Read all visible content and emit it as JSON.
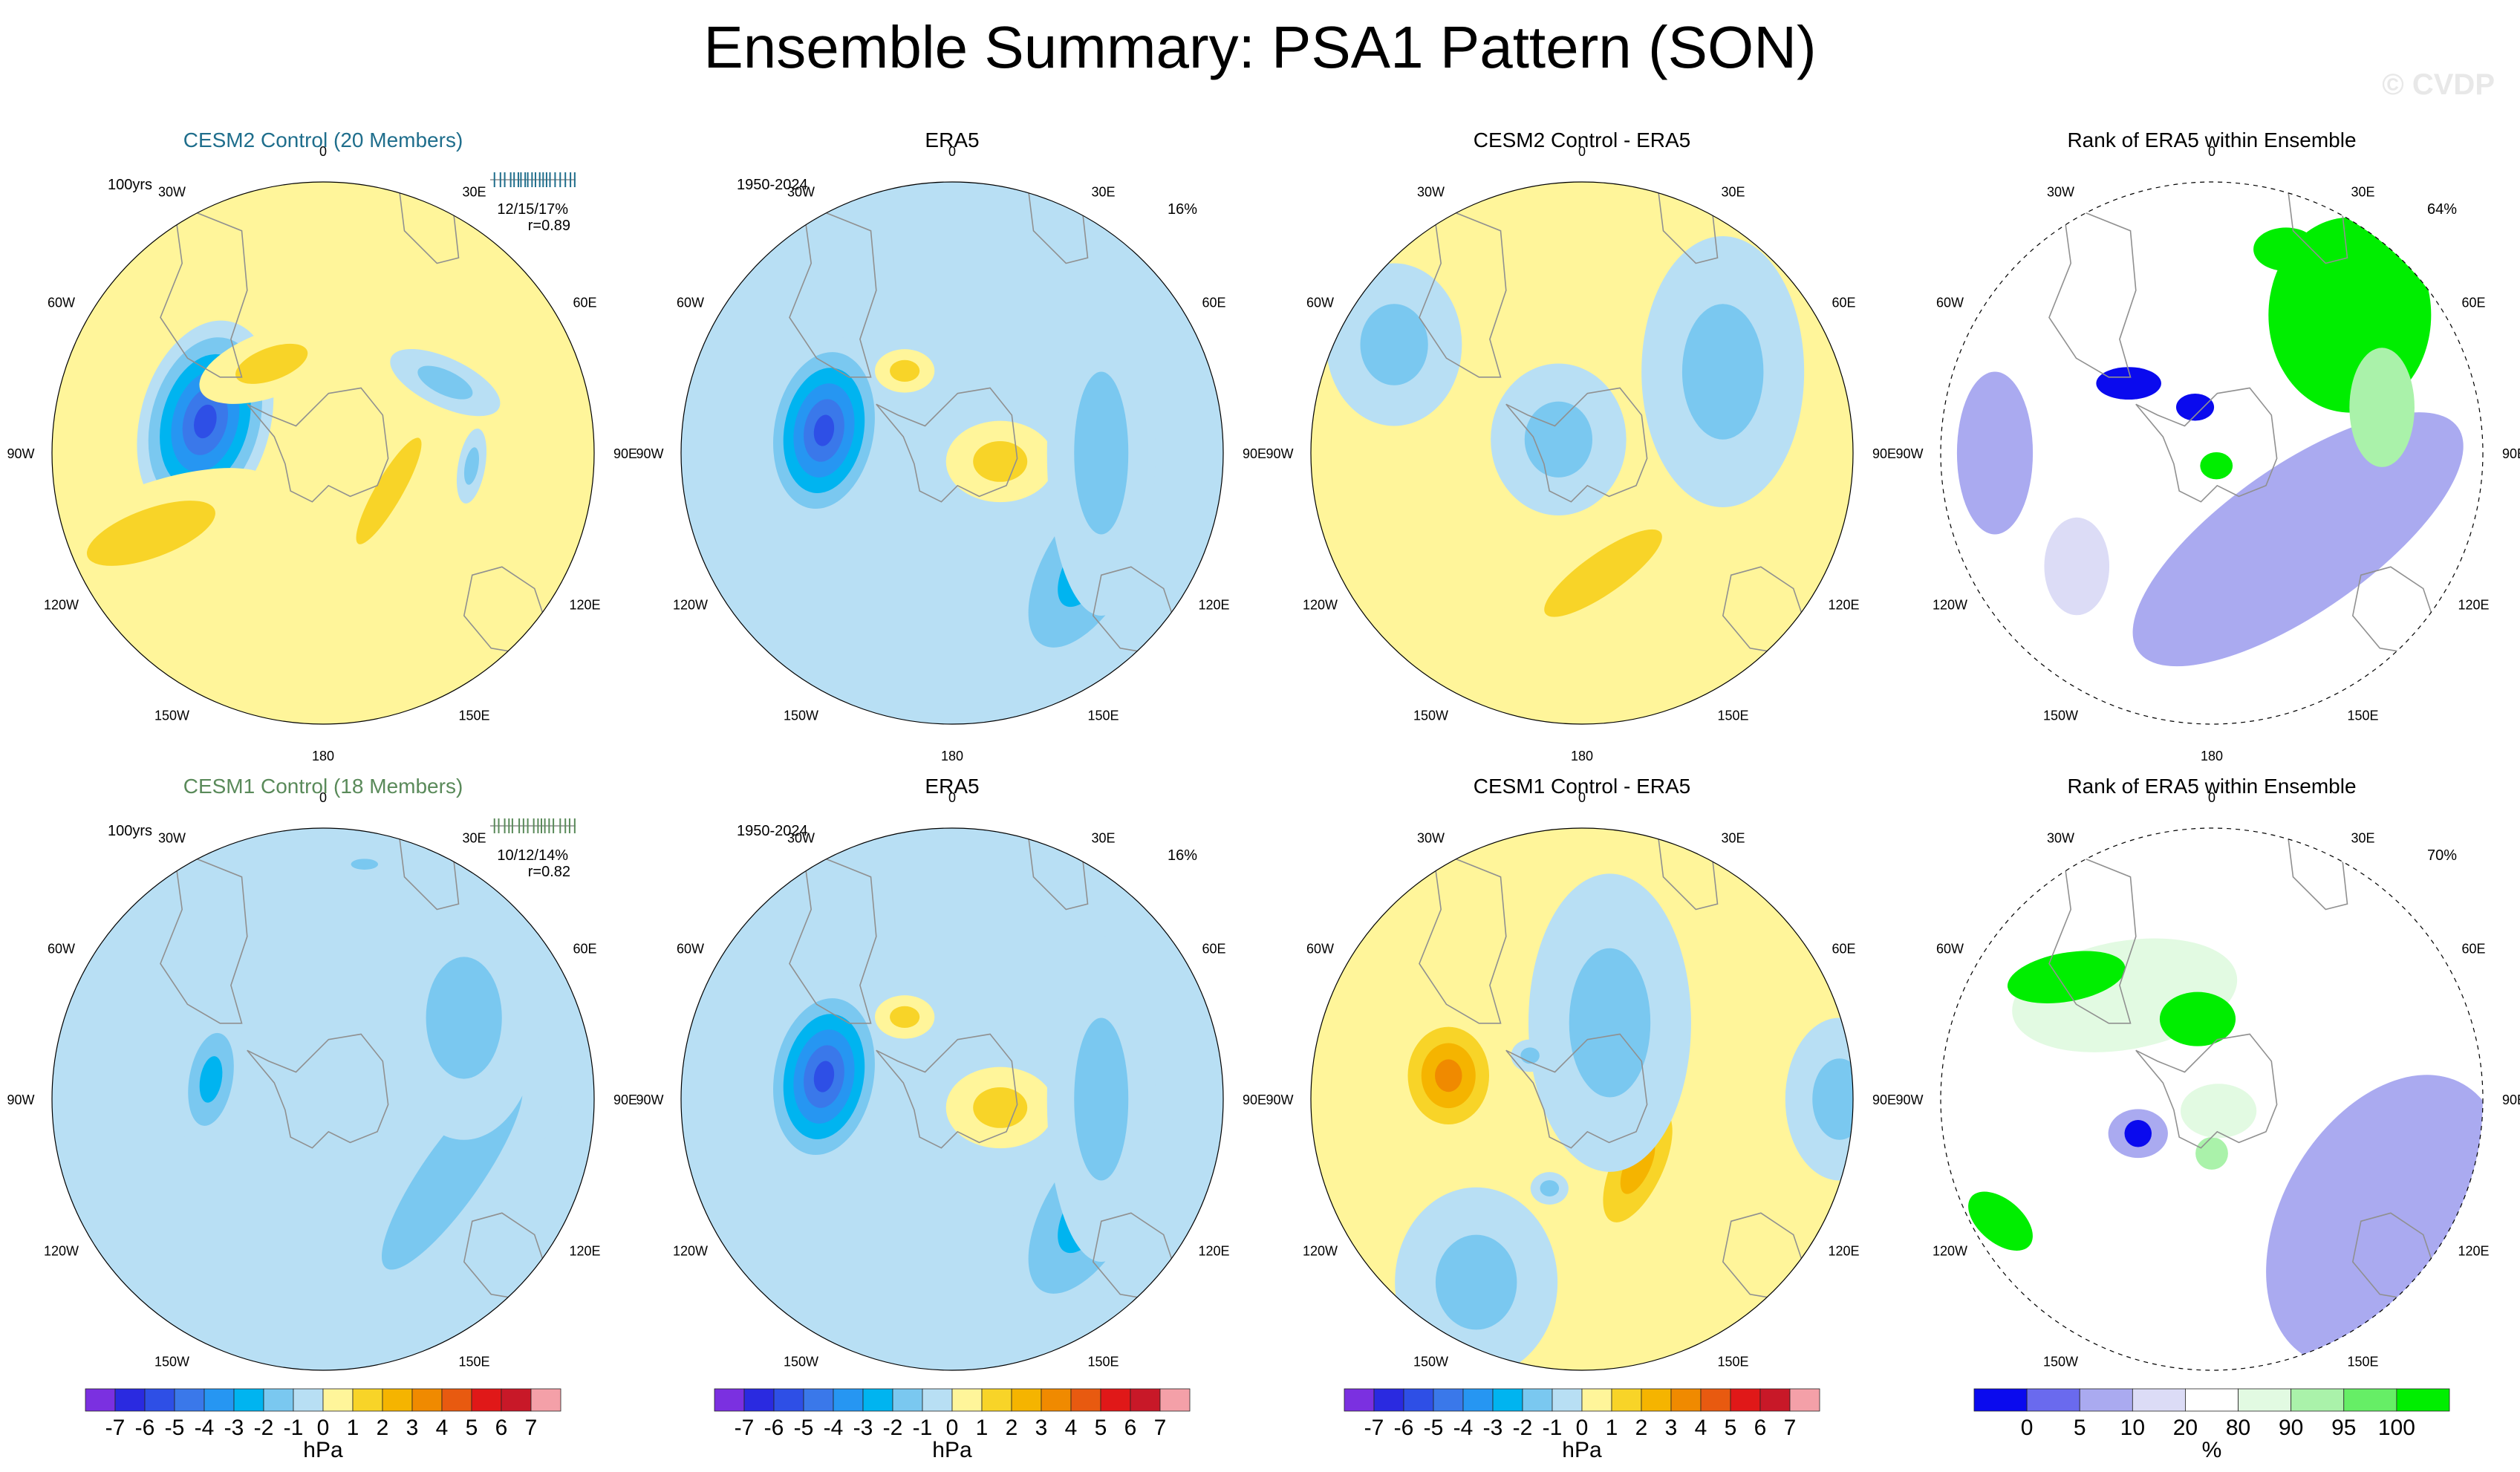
{
  "page": {
    "title": "Ensemble Summary: PSA1 Pattern (SON)",
    "watermark": "© CVDP"
  },
  "chart_data": {
    "type": "polar-map-panels",
    "longitude_labels": [
      "0",
      "30E",
      "60E",
      "90E",
      "120E",
      "150E",
      "180",
      "150W",
      "120W",
      "90W",
      "60W",
      "30W"
    ],
    "colors": {
      "cesm2_title": "#1f6e8c",
      "cesm1_title": "#5a8a5a",
      "map_outline": "#909090"
    },
    "contour_colorbar": {
      "unit": "hPa",
      "tick_labels": [
        "-7",
        "-6",
        "-5",
        "-4",
        "-3",
        "-2",
        "-1",
        "0",
        "1",
        "2",
        "3",
        "4",
        "5",
        "6",
        "7"
      ],
      "colors": [
        "#7b30e0",
        "#2a2ae0",
        "#2e4fe6",
        "#3a78ea",
        "#2696f2",
        "#00b4f0",
        "#7ac8f0",
        "#b8dff4",
        "#fff59a",
        "#f8d428",
        "#f5b400",
        "#f08a00",
        "#e85a10",
        "#e01818",
        "#c81828",
        "#f4a0a8"
      ]
    },
    "rank_colorbar": {
      "unit": "%",
      "tick_labels": [
        "0",
        "5",
        "10",
        "20",
        "80",
        "90",
        "95",
        "100"
      ],
      "colors": [
        "#0a0aee",
        "#6a6aee",
        "#aaaaf0",
        "#dcdcf6",
        "#ffffff",
        "#e2fae2",
        "#aaf2aa",
        "#66ee66",
        "#00ee00"
      ]
    },
    "panels": [
      {
        "id": "cesm2-control",
        "kind": "contour",
        "title": "CESM2 Control (20 Members)",
        "title_color_key": "cesm2_title",
        "left_note": "100yrs",
        "right_note": "12/15/17%",
        "right_note2": "r=0.89",
        "member_ticks": [
          0.05,
          0.12,
          0.17,
          0.24,
          0.28,
          0.33,
          0.36,
          0.41,
          0.44,
          0.49,
          0.53,
          0.58,
          0.62,
          0.66,
          0.7,
          0.76,
          0.82,
          0.88,
          0.94,
          0.99
        ],
        "background_level": "0",
        "anomalies": [
          {
            "lon": 285,
            "colat": 0.45,
            "sx": 0.24,
            "sy": 0.38,
            "rot": 15,
            "min": -5.5
          },
          {
            "lon": 120,
            "colat": 0.28,
            "sx": 0.1,
            "sy": 0.45,
            "rot": 30,
            "min": 1.8
          },
          {
            "lon": 330,
            "colat": 0.38,
            "sx": 0.28,
            "sy": 0.12,
            "rot": -20,
            "min": 1.6
          },
          {
            "lon": 245,
            "colat": 0.7,
            "sx": 0.18,
            "sy": 0.5,
            "rot": 70,
            "min": 1.7
          },
          {
            "lon": 60,
            "colat": 0.52,
            "sx": 0.22,
            "sy": 0.09,
            "rot": 25,
            "min": -1.6
          },
          {
            "lon": 95,
            "colat": 0.55,
            "sx": 0.05,
            "sy": 0.14,
            "rot": 10,
            "min": -1.6
          }
        ]
      },
      {
        "id": "era5-top",
        "kind": "contour",
        "title": "ERA5",
        "left_note": "1950-2024",
        "right_note": "16%",
        "right_note2": "",
        "background_level": "1",
        "anomalies": [
          {
            "lon": 280,
            "colat": 0.48,
            "sx": 0.22,
            "sy": 0.35,
            "rot": 10,
            "min": -6.0
          },
          {
            "lon": 100,
            "colat": 0.18,
            "sx": 0.2,
            "sy": 0.15,
            "rot": 0,
            "min": 1.8
          },
          {
            "lon": 330,
            "colat": 0.35,
            "sx": 0.11,
            "sy": 0.08,
            "rot": 0,
            "min": 1.6
          },
          {
            "lon": 130,
            "colat": 0.65,
            "sx": 0.24,
            "sy": 0.5,
            "rot": 30,
            "min": -2.2
          },
          {
            "lon": 90,
            "colat": 0.55,
            "sx": 0.2,
            "sy": 0.6,
            "rot": 0,
            "min": -1.2
          }
        ]
      },
      {
        "id": "cesm2-minus-era5",
        "kind": "contour",
        "title": "CESM2 Control - ERA5",
        "left_note": "",
        "right_note": "",
        "right_note2": "",
        "background_level": "0",
        "anomalies": [
          {
            "lon": 170,
            "colat": 0.45,
            "sx": 0.15,
            "sy": 0.52,
            "rot": 55,
            "min": 1.6
          },
          {
            "lon": 300,
            "colat": 0.1,
            "sx": 0.25,
            "sy": 0.28,
            "rot": 0,
            "min": -1.2
          },
          {
            "lon": 60,
            "colat": 0.6,
            "sx": 0.3,
            "sy": 0.5,
            "rot": 0,
            "min": -1.2
          },
          {
            "lon": 300,
            "colat": 0.8,
            "sx": 0.25,
            "sy": 0.3,
            "rot": 0,
            "min": -1.2
          }
        ]
      },
      {
        "id": "rank-top",
        "kind": "rank",
        "title": "Rank of ERA5 within Ensemble",
        "left_note": "",
        "right_note": "64%",
        "right_note2": "",
        "blobs": [
          {
            "lon": 135,
            "colat": 0.45,
            "sx": 0.2,
            "sy": 0.62,
            "rot": 55,
            "level": 0
          },
          {
            "lon": 135,
            "colat": 0.45,
            "sx": 0.27,
            "sy": 0.72,
            "rot": 55,
            "level": 2
          },
          {
            "lon": 45,
            "colat": 0.72,
            "sx": 0.3,
            "sy": 0.36,
            "rot": 0,
            "level": 8
          },
          {
            "lon": 20,
            "colat": 0.8,
            "sx": 0.12,
            "sy": 0.08,
            "rot": 0,
            "level": 8
          },
          {
            "lon": 75,
            "colat": 0.65,
            "sx": 0.12,
            "sy": 0.22,
            "rot": 0,
            "level": 6
          },
          {
            "lon": 310,
            "colat": 0.4,
            "sx": 0.12,
            "sy": 0.06,
            "rot": 0,
            "level": 0
          },
          {
            "lon": 340,
            "colat": 0.18,
            "sx": 0.07,
            "sy": 0.05,
            "rot": 0,
            "level": 0
          },
          {
            "lon": 270,
            "colat": 0.8,
            "sx": 0.14,
            "sy": 0.3,
            "rot": 0,
            "level": 2
          },
          {
            "lon": 230,
            "colat": 0.65,
            "sx": 0.12,
            "sy": 0.18,
            "rot": 0,
            "level": 3
          },
          {
            "lon": 160,
            "colat": 0.05,
            "sx": 0.06,
            "sy": 0.05,
            "rot": 0,
            "level": 8
          }
        ]
      },
      {
        "id": "cesm1-control",
        "kind": "contour",
        "title": "CESM1 Control (18 Members)",
        "title_color_key": "cesm1_title",
        "left_note": "100yrs",
        "right_note": "10/12/14%",
        "right_note2": "r=0.82",
        "member_ticks": [
          0.05,
          0.1,
          0.17,
          0.22,
          0.26,
          0.34,
          0.39,
          0.44,
          0.51,
          0.56,
          0.6,
          0.64,
          0.69,
          0.74,
          0.82,
          0.88,
          0.93,
          0.99
        ],
        "background_level": "1",
        "anomalies": [
          {
            "lon": 280,
            "colat": 0.42,
            "sx": 0.12,
            "sy": 0.26,
            "rot": 10,
            "min": -2.2
          },
          {
            "lon": 120,
            "colat": 0.55,
            "sx": 0.22,
            "sy": 0.85,
            "rot": 35,
            "min": -1.3
          },
          {
            "lon": 60,
            "colat": 0.6,
            "sx": 0.28,
            "sy": 0.45,
            "rot": 0,
            "min": -1.3
          },
          {
            "lon": 10,
            "colat": 0.88,
            "sx": 0.1,
            "sy": 0.04,
            "rot": 0,
            "min": -1.3
          }
        ]
      },
      {
        "id": "era5-bottom",
        "kind": "contour",
        "title": "ERA5",
        "left_note": "1950-2024",
        "right_note": "16%",
        "right_note2": "",
        "background_level": "1",
        "anomalies": [
          {
            "lon": 280,
            "colat": 0.48,
            "sx": 0.22,
            "sy": 0.35,
            "rot": 10,
            "min": -6.0
          },
          {
            "lon": 100,
            "colat": 0.18,
            "sx": 0.2,
            "sy": 0.15,
            "rot": 0,
            "min": 1.8
          },
          {
            "lon": 330,
            "colat": 0.35,
            "sx": 0.11,
            "sy": 0.08,
            "rot": 0,
            "min": 1.6
          },
          {
            "lon": 130,
            "colat": 0.65,
            "sx": 0.24,
            "sy": 0.5,
            "rot": 30,
            "min": -2.2
          },
          {
            "lon": 90,
            "colat": 0.55,
            "sx": 0.2,
            "sy": 0.6,
            "rot": 0,
            "min": -1.2
          }
        ]
      },
      {
        "id": "cesm1-minus-era5",
        "kind": "contour",
        "title": "CESM1 Control - ERA5",
        "left_note": "",
        "right_note": "",
        "right_note2": "",
        "background_level": "0",
        "anomalies": [
          {
            "lon": 280,
            "colat": 0.5,
            "sx": 0.2,
            "sy": 0.24,
            "rot": 0,
            "min": 3.4
          },
          {
            "lon": 140,
            "colat": 0.32,
            "sx": 0.14,
            "sy": 0.34,
            "rot": 25,
            "min": 2.2
          },
          {
            "lon": 20,
            "colat": 0.3,
            "sx": 0.3,
            "sy": 0.55,
            "rot": 0,
            "min": -1.3
          },
          {
            "lon": 200,
            "colat": 0.35,
            "sx": 0.07,
            "sy": 0.06,
            "rot": 0,
            "min": -1.8
          },
          {
            "lon": 310,
            "colat": 0.25,
            "sx": 0.07,
            "sy": 0.06,
            "rot": 0,
            "min": -1.8
          },
          {
            "lon": 90,
            "colat": 0.95,
            "sx": 0.2,
            "sy": 0.3,
            "rot": 0,
            "min": -1.3
          },
          {
            "lon": 210,
            "colat": 0.78,
            "sx": 0.3,
            "sy": 0.35,
            "rot": 0,
            "min": -1.3
          }
        ]
      },
      {
        "id": "rank-bottom",
        "kind": "rank",
        "title": "Rank of ERA5 within Ensemble",
        "left_note": "",
        "right_note": "70%",
        "right_note2": "",
        "blobs": [
          {
            "lon": 125,
            "colat": 0.78,
            "sx": 0.3,
            "sy": 0.5,
            "rot": 30,
            "level": 0
          },
          {
            "lon": 125,
            "colat": 0.78,
            "sx": 0.38,
            "sy": 0.58,
            "rot": 30,
            "level": 2
          },
          {
            "lon": 320,
            "colat": 0.5,
            "sx": 0.42,
            "sy": 0.2,
            "rot": -10,
            "level": 5
          },
          {
            "lon": 310,
            "colat": 0.7,
            "sx": 0.22,
            "sy": 0.09,
            "rot": -10,
            "level": 8
          },
          {
            "lon": 350,
            "colat": 0.3,
            "sx": 0.14,
            "sy": 0.1,
            "rot": 0,
            "level": 8
          },
          {
            "lon": 240,
            "colat": 0.9,
            "sx": 0.14,
            "sy": 0.08,
            "rot": 40,
            "level": 8
          },
          {
            "lon": 245,
            "colat": 0.3,
            "sx": 0.11,
            "sy": 0.09,
            "rot": 0,
            "level": 2
          },
          {
            "lon": 245,
            "colat": 0.3,
            "sx": 0.05,
            "sy": 0.05,
            "rot": 0,
            "level": 0
          },
          {
            "lon": 180,
            "colat": 0.2,
            "sx": 0.06,
            "sy": 0.06,
            "rot": 0,
            "level": 6
          },
          {
            "lon": 150,
            "colat": 0.05,
            "sx": 0.14,
            "sy": 0.1,
            "rot": 0,
            "level": 5
          }
        ]
      }
    ]
  }
}
